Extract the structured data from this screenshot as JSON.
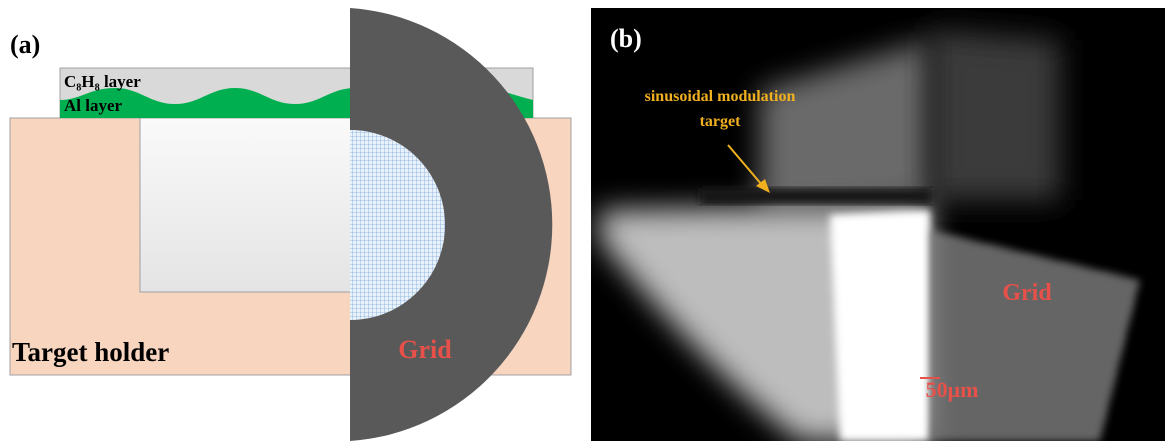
{
  "panel_a": {
    "label": "(a)",
    "top_layer": "C₈H₈ layer",
    "bottom_layer": "Al layer",
    "holder": "Target holder",
    "grid": "Grid"
  },
  "panel_b": {
    "label": "(b)",
    "annotation": [
      "sinusoidal modulation",
      "target"
    ],
    "grid": "Grid",
    "scale": "50μm"
  }
}
